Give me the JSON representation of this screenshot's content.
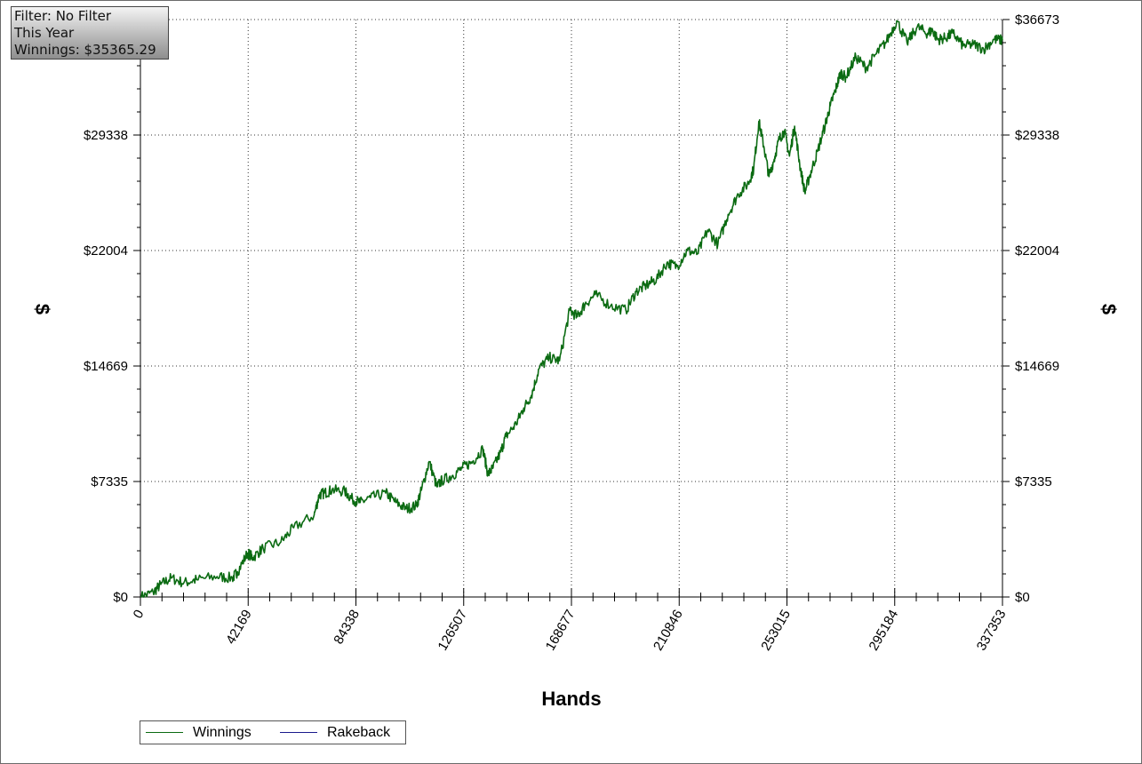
{
  "info": {
    "filter": "Filter: No Filter",
    "period": "This Year",
    "winnings": "Winnings: $35365.29"
  },
  "colors": {
    "winnings": "#0b6b12",
    "rakeback": "#1a1a8c",
    "grid": "#333333"
  },
  "chart_data": {
    "type": "line",
    "xlabel": "Hands",
    "ylabel": "$",
    "xlim": [
      0,
      337353
    ],
    "ylim": [
      0,
      36673
    ],
    "x_ticks": [
      "0",
      "42169",
      "84338",
      "126507",
      "168677",
      "210846",
      "253015",
      "295184",
      "337353"
    ],
    "y_ticks_left": [
      "$0",
      "$7335",
      "$14669",
      "$22004",
      "$29338"
    ],
    "y_ticks_right": [
      "$0",
      "$7335",
      "$14669",
      "$22004",
      "$29338",
      "$36673"
    ],
    "grid": true,
    "legend_position": "bottom-left",
    "series": [
      {
        "name": "Winnings",
        "x": [
          0,
          5000,
          8000,
          12000,
          17000,
          22000,
          30000,
          36000,
          38000,
          42000,
          44000,
          48000,
          55000,
          60000,
          68000,
          70000,
          72000,
          75000,
          80000,
          83000,
          86000,
          90000,
          96000,
          100000,
          104000,
          108000,
          110000,
          113000,
          116000,
          118000,
          122000,
          126000,
          130000,
          134000,
          136000,
          138000,
          141000,
          143000,
          147000,
          150000,
          153000,
          156000,
          160000,
          164000,
          168000,
          171000,
          174000,
          178000,
          184000,
          190000,
          194000,
          198000,
          202000,
          206000,
          210000,
          214000,
          218000,
          222000,
          226000,
          230000,
          234000,
          238000,
          240000,
          242000,
          244000,
          246000,
          248000,
          250000,
          252000,
          254000,
          256000,
          258000,
          260000,
          262000,
          265000,
          268000,
          270000,
          272000,
          274000,
          276000,
          280000,
          284000,
          288000,
          292000,
          296000,
          300000,
          304000,
          308000,
          310000,
          312000,
          315000,
          318000,
          322000,
          326000,
          330000,
          334000,
          337353
        ],
        "values": [
          0,
          300,
          800,
          1200,
          900,
          1100,
          1300,
          1200,
          1600,
          2800,
          2500,
          3100,
          3500,
          4400,
          5200,
          6500,
          6600,
          6800,
          6700,
          6200,
          6000,
          6300,
          6600,
          6000,
          5600,
          5800,
          6800,
          8600,
          7000,
          7400,
          7700,
          8200,
          8600,
          9400,
          7800,
          8200,
          9200,
          10200,
          11000,
          12000,
          12800,
          14500,
          15200,
          15000,
          18200,
          17800,
          18600,
          19200,
          18500,
          18200,
          19400,
          19800,
          20200,
          21200,
          21000,
          22000,
          21800,
          23300,
          22400,
          24300,
          25600,
          26300,
          27200,
          30200,
          28600,
          26700,
          27800,
          29100,
          29600,
          28000,
          29900,
          27500,
          25700,
          26800,
          28300,
          30000,
          31200,
          32200,
          33300,
          33000,
          34300,
          33600,
          34500,
          35300,
          36600,
          35200,
          36200,
          35800,
          36000,
          35400,
          35500,
          35800,
          35000,
          35100,
          34800,
          35400,
          35365
        ]
      },
      {
        "name": "Rakeback",
        "x": [],
        "values": []
      }
    ]
  }
}
